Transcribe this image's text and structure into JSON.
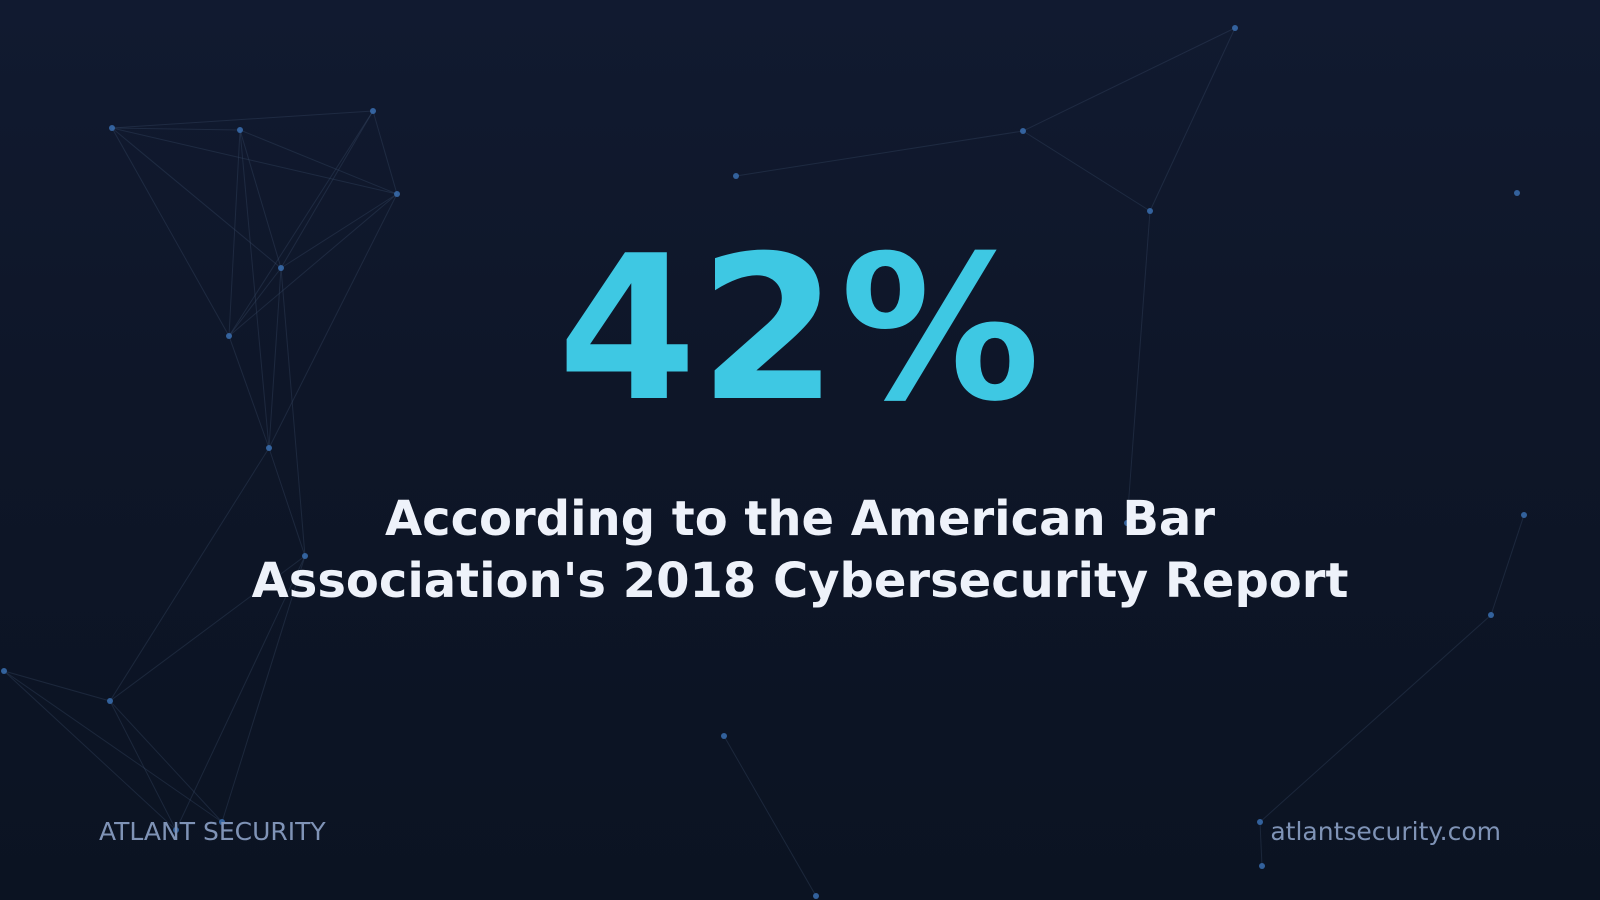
{
  "slide": {
    "stat": "42%",
    "caption_lines": [
      "According to the American Bar",
      "Association's 2018 Cybersecurity Report"
    ]
  },
  "footer": {
    "brand": "ATLANT SECURITY",
    "url": "atlantsecurity.com"
  },
  "colors": {
    "stat": "#3ec8e3",
    "caption": "#eef2fa",
    "footer": "#7f93b6",
    "background": "#0e1628",
    "network_node": "#3a6fb0"
  },
  "icons": {
    "background": "network-graph-icon"
  }
}
